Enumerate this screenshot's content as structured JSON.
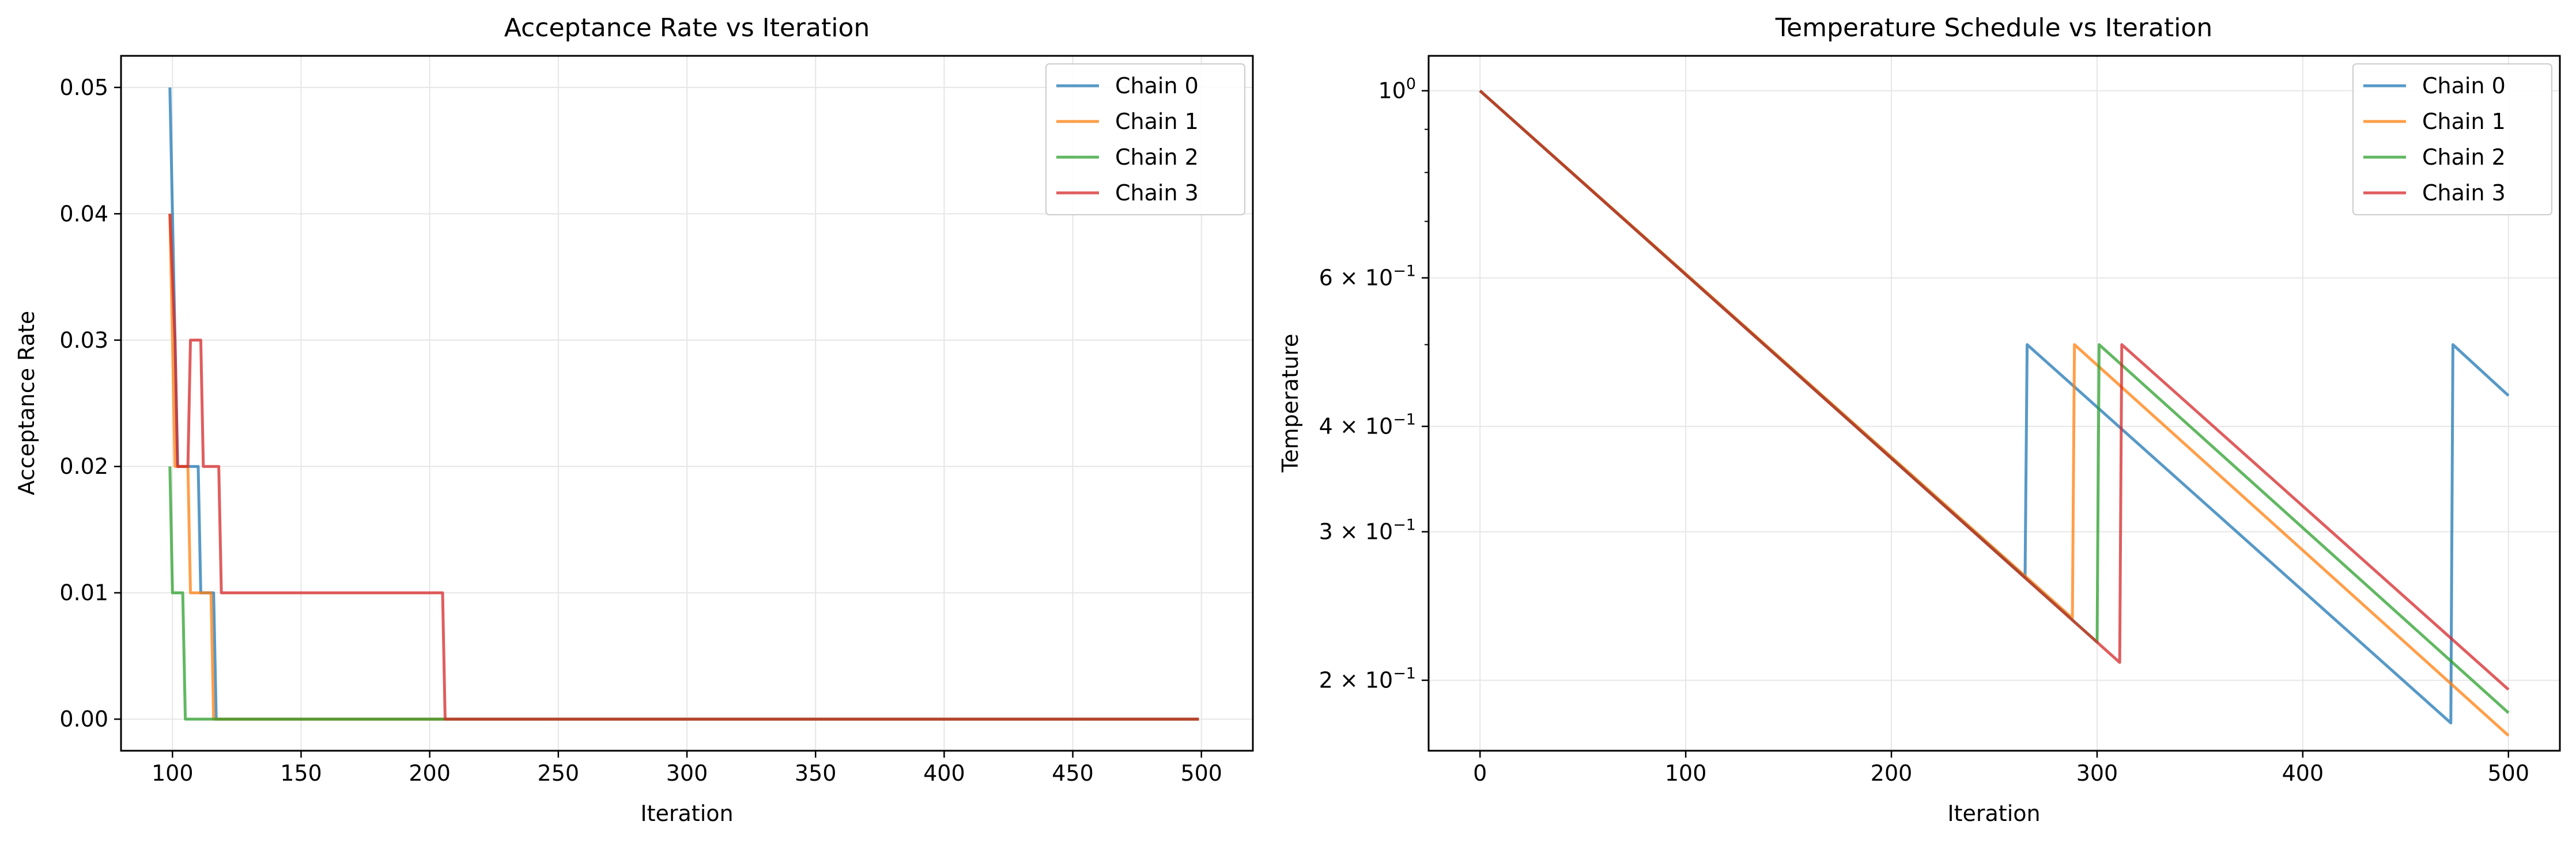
{
  "chart_data": [
    {
      "type": "line",
      "title": "Acceptance Rate vs Iteration",
      "xlabel": "Iteration",
      "ylabel": "Acceptance Rate",
      "xlim": [
        80,
        520
      ],
      "ylim": [
        -0.0025,
        0.0525
      ],
      "y_scale": "linear",
      "x_ticks": [
        100,
        150,
        200,
        250,
        300,
        350,
        400,
        450,
        500
      ],
      "x_tick_labels": [
        "100",
        "150",
        "200",
        "250",
        "300",
        "350",
        "400",
        "450",
        "500"
      ],
      "y_ticks": [
        0.0,
        0.01,
        0.02,
        0.03,
        0.04,
        0.05
      ],
      "y_tick_labels": [
        "0.00",
        "0.01",
        "0.02",
        "0.03",
        "0.04",
        "0.05"
      ],
      "grid": true,
      "legend_position": "top-right",
      "series": [
        {
          "name": "Chain 0",
          "color": "#1f77b4",
          "x": [
            99,
            101,
            102,
            103,
            104,
            105,
            110,
            111,
            113,
            114,
            116,
            117,
            205,
            206,
            499
          ],
          "y": [
            0.05,
            0.03,
            0.02,
            0.02,
            0.02,
            0.02,
            0.02,
            0.01,
            0.01,
            0.01,
            0.01,
            0.0,
            0.0,
            0.0,
            0.0
          ]
        },
        {
          "name": "Chain 1",
          "color": "#ff7f0e",
          "x": [
            99,
            101,
            102,
            105,
            106,
            107,
            112,
            113,
            114,
            115,
            116,
            117,
            499
          ],
          "y": [
            0.04,
            0.02,
            0.02,
            0.02,
            0.02,
            0.01,
            0.01,
            0.01,
            0.01,
            0.01,
            0.0,
            0.0,
            0.0
          ]
        },
        {
          "name": "Chain 2",
          "color": "#2ca02c",
          "x": [
            99,
            100,
            103,
            104,
            105,
            499
          ],
          "y": [
            0.02,
            0.01,
            0.01,
            0.01,
            0.0,
            0.0
          ]
        },
        {
          "name": "Chain 3",
          "color": "#d62728",
          "x": [
            99,
            101,
            102,
            105,
            106,
            107,
            111,
            112,
            118,
            119,
            205,
            206,
            499
          ],
          "y": [
            0.04,
            0.03,
            0.02,
            0.02,
            0.02,
            0.03,
            0.03,
            0.02,
            0.02,
            0.01,
            0.01,
            0.0,
            0.0
          ]
        }
      ]
    },
    {
      "type": "line",
      "title": "Temperature Schedule vs Iteration",
      "xlabel": "Iteration",
      "ylabel": "Temperature",
      "xlim": [
        -25,
        525
      ],
      "ylim": [
        0.165,
        1.1
      ],
      "y_scale": "log",
      "x_ticks": [
        0,
        100,
        200,
        300,
        400,
        500
      ],
      "x_tick_labels": [
        "0",
        "100",
        "200",
        "300",
        "400",
        "500"
      ],
      "y_ticks": [
        1.0,
        0.6,
        0.4,
        0.3,
        0.2
      ],
      "y_tick_labels": [
        {
          "mantissa": "",
          "base": "10",
          "exp": "0"
        },
        {
          "mantissa": "6 × ",
          "base": "10",
          "exp": "−1"
        },
        {
          "mantissa": "4 × ",
          "base": "10",
          "exp": "−1"
        },
        {
          "mantissa": "3 × ",
          "base": "10",
          "exp": "−1"
        },
        {
          "mantissa": "2 × ",
          "base": "10",
          "exp": "−1"
        }
      ],
      "y_minor_ticks": [
        0.9,
        0.8,
        0.7,
        0.5
      ],
      "grid": true,
      "legend_position": "top-right",
      "series": [
        {
          "name": "Chain 0",
          "color": "#1f77b4",
          "x": [
            0,
            265,
            266,
            472,
            473,
            500
          ],
          "y": [
            1.0,
            0.265,
            0.5,
            0.178,
            0.5,
            0.435
          ]
        },
        {
          "name": "Chain 1",
          "color": "#ff7f0e",
          "x": [
            0,
            288,
            289,
            500
          ],
          "y": [
            1.0,
            0.237,
            0.5,
            0.172
          ]
        },
        {
          "name": "Chain 2",
          "color": "#2ca02c",
          "x": [
            0,
            300,
            301,
            500
          ],
          "y": [
            1.0,
            0.222,
            0.5,
            0.183
          ]
        },
        {
          "name": "Chain 3",
          "color": "#d62728",
          "x": [
            0,
            311,
            312,
            500
          ],
          "y": [
            1.0,
            0.21,
            0.5,
            0.195
          ]
        }
      ]
    }
  ]
}
